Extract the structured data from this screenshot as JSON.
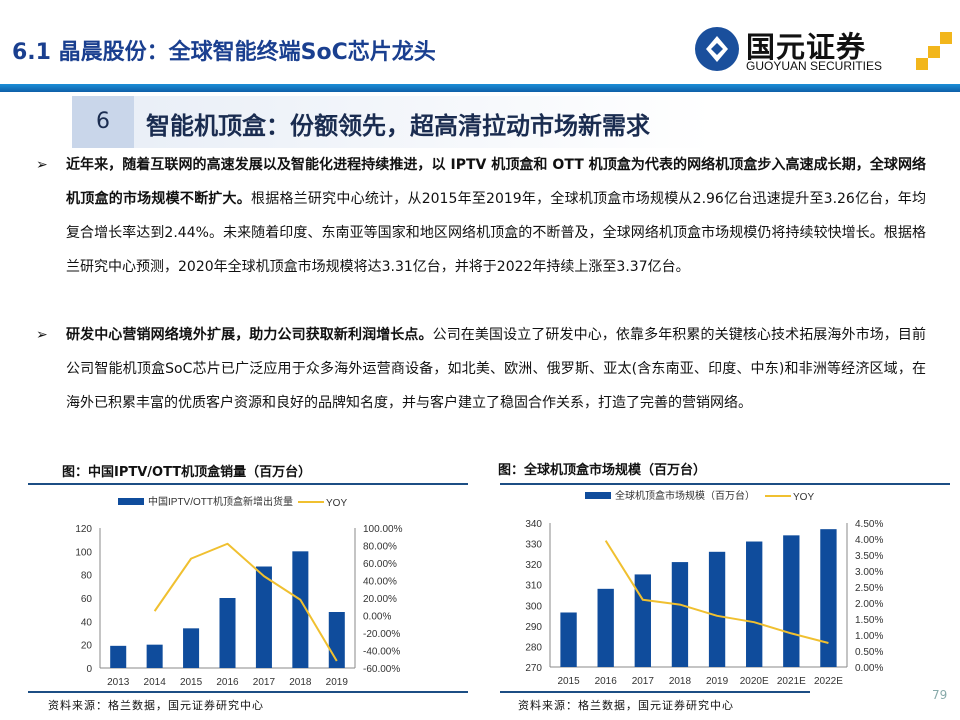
{
  "header": {
    "title": "6.1 晶晨股份：全球智能终端SoC芯片龙头",
    "logo_cn": "国元证券",
    "logo_en": "GUOYUAN SECURITIES"
  },
  "section": {
    "number": "6",
    "title": "智能机顶盒：份额领先，超高清拉动市场新需求"
  },
  "paragraphs": [
    {
      "bold": "近年来，随着互联网的高速发展以及智能化进程持续推进，以 IPTV 机顶盒和 OTT 机顶盒为代表的网络机顶盒步入高速成长期，全球网络机顶盒的市场规模不断扩大。",
      "text": "根据格兰研究中心统计，从2015年至2019年，全球机顶盒市场规模从2.96亿台迅速提升至3.26亿台，年均复合增长率达到2.44%。未来随着印度、东南亚等国家和地区网络机顶盒的不断普及，全球网络机顶盒市场规模仍将持续较快增长。根据格兰研究中心预测，2020年全球机顶盒市场规模将达3.31亿台，并将于2022年持续上涨至3.37亿台。"
    },
    {
      "bold": "研发中心营销网络境外扩展，助力公司获取新利润增长点。",
      "text": "公司在美国设立了研发中心，依靠多年积累的关键核心技术拓展海外市场，目前公司智能机顶盒SoC芯片已广泛应用于众多海外运营商设备，如北美、欧洲、俄罗斯、亚太(含东南亚、印度、中东)和非洲等经济区域，在海外已积累丰富的优质客户资源和良好的品牌知名度，并与客户建立了稳固合作关系，打造了完善的营销网络。"
    }
  ],
  "bullet": "➢",
  "colors": {
    "bar": "#0f4c9c",
    "line": "#f0c030"
  },
  "chart_data": [
    {
      "type": "bar",
      "title": "图：中国IPTV/OTT机顶盒销量（百万台）",
      "source": "资料来源：格兰数据，国元证券研究中心",
      "categories": [
        "2013",
        "2014",
        "2015",
        "2016",
        "2017",
        "2018",
        "2019"
      ],
      "series": [
        {
          "name": "中国IPTV/OTT机顶盒新增出货量",
          "type": "bar",
          "axis": "left",
          "values": [
            19,
            20,
            34,
            60,
            87,
            100,
            48
          ]
        },
        {
          "name": "YOY",
          "type": "line",
          "axis": "right",
          "values": [
            null,
            0.05,
            0.65,
            0.82,
            0.45,
            0.18,
            -0.52
          ]
        }
      ],
      "ylim": [
        0,
        120
      ],
      "yticks": [
        "0",
        "20",
        "40",
        "60",
        "80",
        "100",
        "120"
      ],
      "y2lim": [
        -0.6,
        1.0
      ],
      "y2ticks": [
        "-60.00%",
        "-40.00%",
        "-20.00%",
        "0.00%",
        "20.00%",
        "40.00%",
        "60.00%",
        "80.00%",
        "100.00%"
      ]
    },
    {
      "type": "bar",
      "title": "图：全球机顶盒市场规模（百万台）",
      "source": "资料来源：格兰数据，国元证券研究中心",
      "categories": [
        "2015",
        "2016",
        "2017",
        "2018",
        "2019",
        "2020E",
        "2021E",
        "2022E"
      ],
      "series": [
        {
          "name": "全球机顶盒市场规模（百万台）",
          "type": "bar",
          "axis": "left",
          "values": [
            296.5,
            308,
            315,
            321,
            326,
            331,
            334,
            337
          ]
        },
        {
          "name": "YOY",
          "type": "line",
          "axis": "right",
          "values": [
            null,
            0.0395,
            0.021,
            0.0195,
            0.016,
            0.014,
            0.0105,
            0.0075
          ]
        }
      ],
      "ylim": [
        270,
        340
      ],
      "yticks": [
        "270",
        "280",
        "290",
        "300",
        "310",
        "320",
        "330",
        "340"
      ],
      "y2lim": [
        0,
        0.045
      ],
      "y2ticks": [
        "0.00%",
        "0.50%",
        "1.00%",
        "1.50%",
        "2.00%",
        "2.50%",
        "3.00%",
        "3.50%",
        "4.00%",
        "4.50%"
      ]
    }
  ],
  "page_number": "79"
}
